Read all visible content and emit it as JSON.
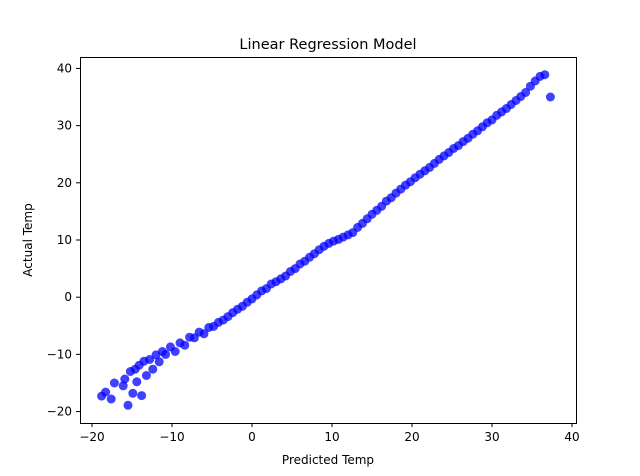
{
  "chart_data": {
    "type": "scatter",
    "title": "Linear Regression Model",
    "xlabel": "Predicted Temp",
    "ylabel": "Actual Temp",
    "xlim": [
      -21.5,
      40.5
    ],
    "ylim": [
      -22,
      42
    ],
    "xticks": [
      -20,
      -10,
      0,
      10,
      20,
      30,
      40
    ],
    "yticks": [
      -20,
      -10,
      0,
      10,
      20,
      30,
      40
    ],
    "xtick_labels": [
      "−20",
      "−10",
      "0",
      "10",
      "20",
      "30",
      "40"
    ],
    "ytick_labels": [
      "−20",
      "−10",
      "0",
      "10",
      "20",
      "30",
      "40"
    ],
    "grid": false,
    "legend": false,
    "colors": {
      "points": "#0000ff"
    },
    "series": [
      {
        "x": [
          -18.8,
          -18.3,
          -17.6,
          -17.2,
          -16.1,
          -15.9,
          -15.5,
          -15.2,
          -14.9,
          -14.6,
          -14.4,
          -14.1,
          -13.8,
          -13.5,
          -13.2,
          -12.8,
          -12.4,
          -12.0,
          -11.6,
          -11.2,
          -10.8,
          -10.2,
          -9.6,
          -9.0,
          -8.4,
          -7.8,
          -7.2,
          -6.6,
          -6.0,
          -5.4,
          -4.8,
          -4.2,
          -3.6,
          -3.0,
          -2.4,
          -1.8,
          -1.2,
          -0.6,
          0.0,
          0.6,
          1.2,
          1.8,
          2.4,
          3.0,
          3.6,
          4.2,
          4.8,
          5.4,
          6.0,
          6.6,
          7.2,
          7.8,
          8.4,
          9.0,
          9.6,
          10.2,
          10.8,
          11.4,
          12.0,
          12.6,
          13.2,
          13.8,
          14.4,
          15.0,
          15.6,
          16.2,
          16.8,
          17.4,
          18.0,
          18.6,
          19.2,
          19.8,
          20.4,
          21.0,
          21.6,
          22.2,
          22.8,
          23.4,
          24.0,
          24.6,
          25.2,
          25.8,
          26.4,
          27.0,
          27.6,
          28.2,
          28.8,
          29.4,
          30.0,
          30.6,
          31.2,
          31.8,
          32.4,
          33.0,
          33.6,
          34.2,
          34.8,
          35.4,
          36.0,
          36.6,
          37.3
        ],
        "y": [
          -17.3,
          -16.6,
          -17.8,
          -15.0,
          -15.5,
          -14.3,
          -18.9,
          -13.0,
          -16.8,
          -12.6,
          -14.8,
          -11.9,
          -17.2,
          -11.2,
          -13.7,
          -10.9,
          -12.6,
          -10.1,
          -11.3,
          -9.5,
          -10.0,
          -8.7,
          -9.5,
          -8.0,
          -8.4,
          -7.0,
          -7.1,
          -6.1,
          -6.4,
          -5.3,
          -5.1,
          -4.4,
          -4.0,
          -3.4,
          -2.7,
          -2.1,
          -1.6,
          -0.9,
          -0.3,
          0.4,
          1.1,
          1.5,
          2.3,
          2.7,
          3.2,
          3.7,
          4.5,
          5.0,
          5.8,
          6.3,
          7.0,
          7.6,
          8.3,
          8.9,
          9.4,
          9.8,
          10.1,
          10.5,
          10.9,
          11.3,
          12.2,
          12.9,
          13.7,
          14.5,
          15.2,
          15.9,
          16.8,
          17.4,
          18.2,
          18.9,
          19.6,
          20.2,
          20.9,
          21.5,
          22.1,
          22.7,
          23.4,
          24.1,
          24.7,
          25.3,
          26.0,
          26.5,
          27.2,
          27.8,
          28.5,
          29.1,
          29.8,
          30.5,
          31.0,
          31.8,
          32.4,
          33.0,
          33.7,
          34.4,
          35.1,
          35.8,
          36.9,
          37.8,
          38.6,
          38.9,
          35.0
        ]
      }
    ]
  }
}
